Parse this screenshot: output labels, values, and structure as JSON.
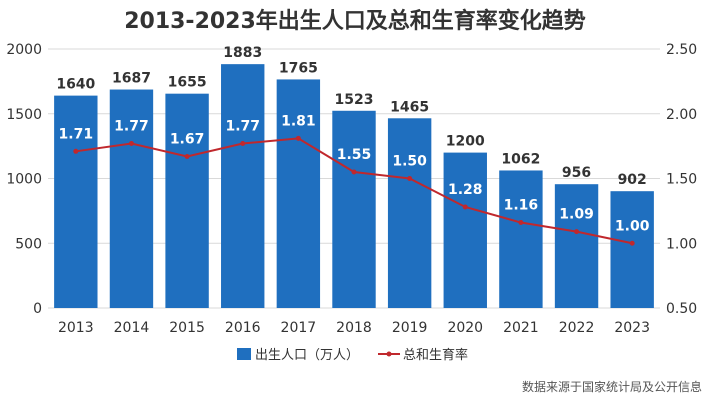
{
  "chart_data": {
    "type": "bar",
    "title": "2013-2023年出生人口及总和生育率变化趋势",
    "categories": [
      "2013",
      "2014",
      "2015",
      "2016",
      "2017",
      "2018",
      "2019",
      "2020",
      "2021",
      "2022",
      "2023"
    ],
    "series": [
      {
        "name": "出生人口（万人）",
        "type": "bar",
        "axis": "left",
        "color": "#1f6fbf",
        "values": [
          1640,
          1687,
          1655,
          1883,
          1765,
          1523,
          1465,
          1200,
          1062,
          956,
          902
        ],
        "labels": [
          "1640",
          "1687",
          "1655",
          "1883",
          "1765",
          "1523",
          "1465",
          "1200",
          "1062",
          "956",
          "902"
        ]
      },
      {
        "name": "总和生育率",
        "type": "line",
        "axis": "right",
        "color": "#c0282d",
        "values": [
          1.71,
          1.77,
          1.67,
          1.77,
          1.81,
          1.55,
          1.5,
          1.28,
          1.16,
          1.09,
          1.0
        ],
        "labels": [
          "1.71",
          "1.77",
          "1.67",
          "1.77",
          "1.81",
          "1.55",
          "1.50",
          "1.28",
          "1.16",
          "1.09",
          "1.00"
        ]
      }
    ],
    "y_left": {
      "min": 0,
      "max": 2000,
      "ticks": [
        "0",
        "500",
        "1000",
        "1500",
        "2000"
      ]
    },
    "y_right": {
      "min": 0.5,
      "max": 2.5,
      "ticks": [
        "0.50",
        "1.00",
        "1.50",
        "2.00",
        "2.50"
      ]
    },
    "grid": true,
    "legend_position": "bottom",
    "source": "数据来源于国家统计局及公开信息"
  }
}
